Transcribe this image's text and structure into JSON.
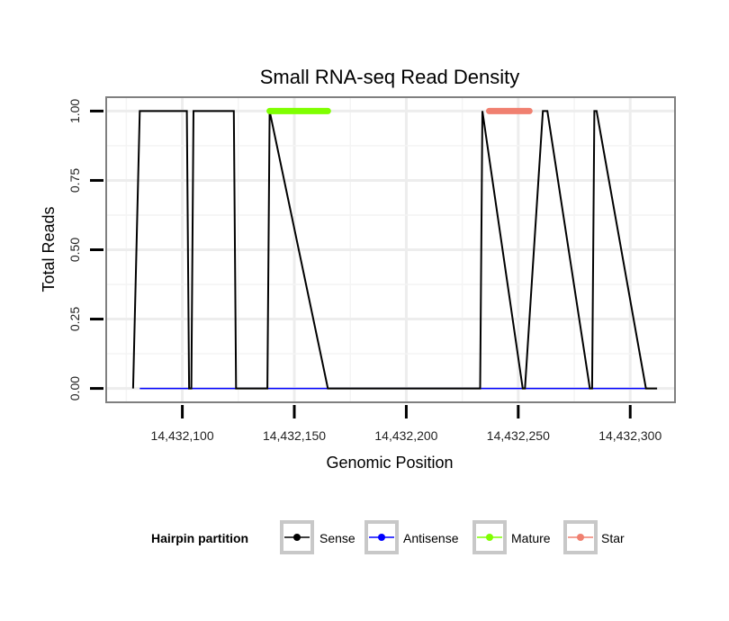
{
  "chart_data": {
    "type": "line",
    "title": "Small RNA-seq Read Density",
    "xlabel": "Genomic Position",
    "ylabel": "Total Reads",
    "xlim": [
      14432066,
      14432320
    ],
    "ylim": [
      -0.05,
      1.05
    ],
    "grid": true,
    "x_ticks": [
      14432100,
      14432150,
      14432200,
      14432250,
      14432300
    ],
    "x_tick_labels": [
      "14,432,100",
      "14,432,150",
      "14,432,200",
      "14,432,250",
      "14,432,300"
    ],
    "y_ticks": [
      0,
      0.25,
      0.5,
      0.75,
      1.0
    ],
    "y_tick_labels": [
      "0.00",
      "0.25",
      "0.50",
      "0.75",
      "1.00"
    ],
    "legend": {
      "title": "Hairpin partition",
      "position": "bottom",
      "entries": [
        "Sense",
        "Antisense",
        "Mature",
        "Star"
      ]
    },
    "series": [
      {
        "name": "Sense",
        "color": "#000000",
        "x": [
          14432078,
          14432081,
          14432102,
          14432103,
          14432104,
          14432105,
          14432123,
          14432124,
          14432138,
          14432139,
          14432165,
          14432233,
          14432234,
          14432252,
          14432253,
          14432261,
          14432263,
          14432282,
          14432283,
          14432284,
          14432285,
          14432307,
          14432308,
          14432312
        ],
        "values": [
          0,
          1,
          1,
          0,
          0,
          1,
          1,
          0,
          0,
          1,
          0,
          0,
          1,
          0,
          0,
          1,
          1,
          0,
          0,
          1,
          1,
          0,
          0,
          0
        ]
      },
      {
        "name": "Antisense",
        "color": "#0000ff",
        "x": [
          14432081,
          14432308
        ],
        "values": [
          0,
          0
        ]
      },
      {
        "name": "Mature",
        "color": "#7fff00",
        "x": [
          14432139,
          14432165
        ],
        "values": [
          1,
          1
        ]
      },
      {
        "name": "Star",
        "color": "#f08070",
        "x": [
          14432237,
          14432255
        ],
        "values": [
          1,
          1
        ]
      }
    ]
  }
}
